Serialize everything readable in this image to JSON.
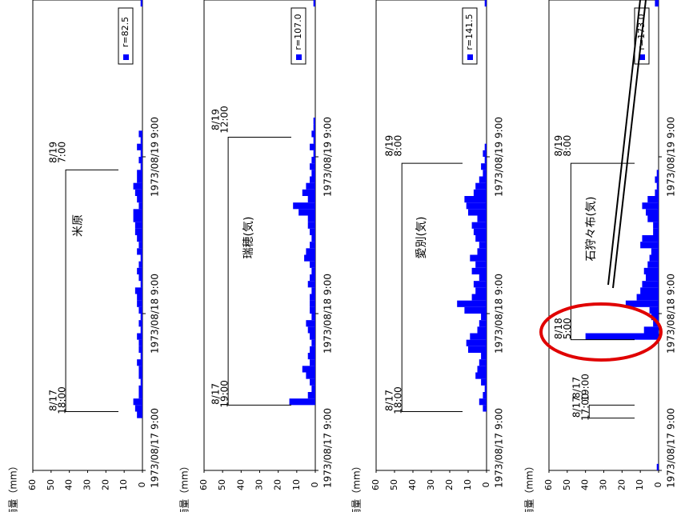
{
  "chart_data": [
    {
      "type": "bar",
      "title": "米原",
      "ylabel": "雨量（mm）",
      "ylim": [
        0,
        60
      ],
      "yticks": [
        "60",
        "50",
        "40",
        "30",
        "20",
        "10",
        "0"
      ],
      "x_tick_labels": [
        "1973/08/17 9:00",
        "1973/08/18 9:00",
        "1973/08/19 9:00"
      ],
      "legend": "r=82.5",
      "bracket": {
        "start_label": [
          "8/17",
          "18:00"
        ],
        "end_label": [
          "8/19",
          "7:00"
        ],
        "start_hour": 9,
        "end_hour": 46,
        "level": 42
      },
      "start_time": "1973/08/17 9:00",
      "hourly_values": [
        0,
        0,
        0,
        0,
        0,
        0,
        0,
        0,
        3,
        4,
        5,
        2,
        2,
        1,
        2,
        2,
        3,
        1,
        2,
        2,
        3,
        1,
        2,
        1,
        2,
        3,
        3,
        4,
        1,
        2,
        3,
        2,
        1,
        3,
        2,
        3,
        4,
        4,
        5,
        5,
        2,
        3,
        4,
        5,
        3,
        3,
        1,
        2,
        1,
        3,
        1,
        2,
        0,
        0,
        0,
        0,
        0,
        0,
        0,
        0,
        0,
        0,
        0,
        0,
        0,
        0,
        0,
        0,
        0,
        0,
        0,
        1
      ]
    },
    {
      "type": "bar",
      "title": "瑞穂(気)",
      "ylabel": "雨量（mm）",
      "ylim": [
        0,
        60
      ],
      "yticks": [
        "60",
        "50",
        "40",
        "30",
        "20",
        "10",
        "0"
      ],
      "x_tick_labels": [
        "1973/08/17 9:00",
        "1973/08/18 9:00",
        "1973/08/19 9:00"
      ],
      "legend": "r=107.0",
      "bracket": {
        "start_label": [
          "8/17",
          "19:00"
        ],
        "end_label": [
          "8/19",
          "12:00"
        ],
        "start_hour": 10,
        "end_hour": 51,
        "level": 47
      },
      "start_time": "1973/08/17 9:00",
      "hourly_values": [
        0,
        0,
        0,
        0,
        0,
        0,
        0,
        0,
        0,
        0,
        14,
        4,
        2,
        3,
        5,
        7,
        3,
        4,
        3,
        2,
        3,
        4,
        5,
        2,
        3,
        3,
        3,
        2,
        4,
        3,
        2,
        3,
        6,
        5,
        3,
        2,
        3,
        4,
        4,
        9,
        12,
        4,
        7,
        5,
        3,
        2,
        3,
        2,
        1,
        3,
        1,
        2,
        1,
        1,
        0,
        0,
        0,
        0,
        0,
        0,
        0,
        0,
        0,
        0,
        0,
        0,
        0,
        0,
        0,
        0,
        0,
        1
      ]
    },
    {
      "type": "bar",
      "title": "愛別(気)",
      "ylabel": "雨量（mm）",
      "ylim": [
        0,
        60
      ],
      "yticks": [
        "60",
        "50",
        "40",
        "30",
        "20",
        "10",
        "0"
      ],
      "x_tick_labels": [
        "1973/08/17 9:00",
        "1973/08/18 9:00",
        "1973/08/19 9:00"
      ],
      "legend": "r=141.5",
      "bracket": {
        "start_label": [
          "8/17",
          "18:00"
        ],
        "end_label": [
          "8/19",
          "8:00"
        ],
        "start_hour": 9,
        "end_hour": 47,
        "level": 46
      },
      "start_time": "1973/08/17 9:00",
      "hourly_values": [
        0,
        0,
        0,
        0,
        0,
        0,
        0,
        0,
        0,
        2,
        4,
        2,
        1,
        3,
        6,
        5,
        4,
        3,
        10,
        11,
        9,
        5,
        4,
        3,
        12,
        16,
        8,
        6,
        7,
        4,
        8,
        6,
        9,
        5,
        4,
        6,
        7,
        8,
        5,
        10,
        11,
        12,
        7,
        6,
        4,
        2,
        3,
        1,
        2,
        1,
        0,
        0,
        0,
        0,
        0,
        0,
        0,
        0,
        0,
        0,
        0,
        0,
        0,
        0,
        0,
        0,
        0,
        0,
        0,
        0,
        0,
        1
      ]
    },
    {
      "type": "bar",
      "title": "石狩々布(気)",
      "ylabel": "雨量（mm）",
      "ylim": [
        0,
        60
      ],
      "yticks": [
        "60",
        "50",
        "40",
        "30",
        "20",
        "10",
        "0"
      ],
      "x_tick_labels": [
        "1973/08/17 9:00",
        "1973/08/18 9:00",
        "1973/08/19 9:00"
      ],
      "legend": "r=173.0",
      "bracket": {
        "start_label": [
          "8/18",
          "5:00"
        ],
        "end_label": [
          "8/19",
          "8:00"
        ],
        "start_hour": 20,
        "end_hour": 47,
        "level": 48
      },
      "bracket2": {
        "start_label": [
          "8/17",
          "17:00"
        ],
        "end_label": [
          "8/17",
          "19:00"
        ],
        "start_hour": 8,
        "end_hour": 10,
        "level": 38
      },
      "start_time": "1973/08/17 9:00",
      "hourly_values": [
        1,
        0,
        0,
        0,
        0,
        0,
        0,
        0,
        0,
        0,
        0,
        0,
        0,
        0,
        0,
        0,
        0,
        0,
        0,
        0,
        40,
        8,
        3,
        4,
        5,
        18,
        12,
        10,
        9,
        7,
        8,
        6,
        5,
        4,
        10,
        9,
        3,
        3,
        6,
        7,
        9,
        6,
        2,
        1,
        2,
        1,
        0,
        0,
        0,
        0,
        0,
        0,
        0,
        0,
        0,
        0,
        0,
        0,
        0,
        0,
        0,
        0,
        0,
        0,
        0,
        0,
        0,
        0,
        0,
        0,
        0,
        2
      ]
    }
  ],
  "colors": {
    "bar": "#0000ff",
    "annotation": "#e00000"
  }
}
